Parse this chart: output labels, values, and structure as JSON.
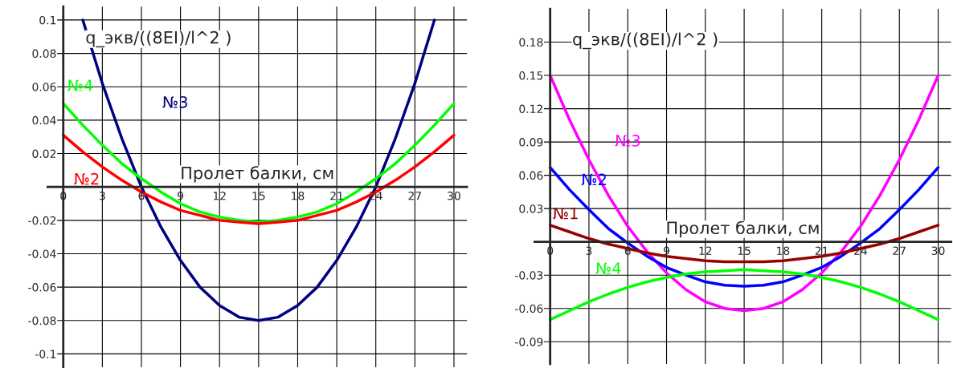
{
  "chart_data": [
    {
      "type": "line",
      "ylabel": "q_экв/((8EI)/l^2 )",
      "xlabel": "Пролет балки, см",
      "x": [
        0,
        1.5,
        3,
        4.5,
        6,
        7.5,
        9,
        10.5,
        12,
        13.5,
        15,
        16.5,
        18,
        19.5,
        21,
        22.5,
        24,
        25.5,
        27,
        28.5,
        30
      ],
      "xlim": [
        -1.2,
        31
      ],
      "ylim": [
        -0.108,
        0.108
      ],
      "xticks": [
        0,
        3,
        6,
        9,
        12,
        15,
        18,
        21,
        24,
        27,
        30
      ],
      "yticks": [
        -0.1,
        -0.08,
        -0.06,
        -0.04,
        -0.02,
        0.02,
        0.04,
        0.06,
        0.08,
        0.1
      ],
      "grid": true,
      "legend": false,
      "series": [
        {
          "name": "№3",
          "color": "#000080",
          "values": [
            null,
            0.1,
            0.062,
            0.029,
            0,
            -0.024,
            -0.044,
            -0.06,
            -0.071,
            -0.078,
            -0.08,
            -0.078,
            -0.071,
            -0.06,
            -0.044,
            -0.024,
            0,
            0.029,
            0.062,
            0.1,
            null
          ]
        },
        {
          "name": "№4",
          "color": "#00ff00",
          "values": [
            0.05,
            0.037,
            0.025,
            0.014,
            0.005,
            -0.003,
            -0.01,
            -0.015,
            -0.018,
            -0.02,
            -0.021,
            -0.02,
            -0.018,
            -0.015,
            -0.01,
            -0.003,
            0.005,
            0.014,
            0.025,
            0.037,
            0.05
          ]
        },
        {
          "name": "№2",
          "color": "#ff0000",
          "values": [
            0.031,
            0.021,
            0.012,
            0.004,
            -0.003,
            -0.009,
            -0.014,
            -0.017,
            -0.02,
            -0.021,
            -0.022,
            -0.021,
            -0.02,
            -0.017,
            -0.014,
            -0.009,
            -0.003,
            0.004,
            0.012,
            0.021,
            0.031
          ]
        }
      ]
    },
    {
      "type": "line",
      "ylabel": "q_экв/((8EI)/l^2 )",
      "xlabel": "Пролет балки, см",
      "x": [
        0,
        1.5,
        3,
        4.5,
        6,
        7.5,
        9,
        10.5,
        12,
        13.5,
        15,
        16.5,
        18,
        19.5,
        21,
        22.5,
        24,
        25.5,
        27,
        28.5,
        30
      ],
      "xlim": [
        -1.2,
        31
      ],
      "ylim": [
        -0.11,
        0.21
      ],
      "xticks": [
        0,
        3,
        6,
        9,
        12,
        15,
        18,
        21,
        24,
        27,
        30
      ],
      "yticks": [
        -0.09,
        -0.06,
        -0.03,
        0.03,
        0.06,
        0.09,
        0.12,
        0.15,
        0.18
      ],
      "grid": true,
      "legend": false,
      "series": [
        {
          "name": "№3",
          "color": "#ff00ff",
          "values": [
            0.15,
            0.11,
            0.074,
            0.042,
            0.014,
            -0.009,
            -0.028,
            -0.043,
            -0.054,
            -0.06,
            -0.062,
            -0.06,
            -0.054,
            -0.043,
            -0.028,
            -0.009,
            0.014,
            0.042,
            0.074,
            0.11,
            0.15
          ]
        },
        {
          "name": "№2",
          "color": "#0000ff",
          "values": [
            0.067,
            0.047,
            0.029,
            0.012,
            -0.001,
            -0.013,
            -0.023,
            -0.03,
            -0.036,
            -0.039,
            -0.04,
            -0.039,
            -0.036,
            -0.03,
            -0.023,
            -0.013,
            -0.001,
            0.012,
            0.029,
            0.047,
            0.067
          ]
        },
        {
          "name": "№1",
          "color": "#990000",
          "values": [
            0.015,
            0.009,
            0.003,
            -0.002,
            -0.006,
            -0.01,
            -0.013,
            -0.015,
            -0.017,
            -0.018,
            -0.018,
            -0.018,
            -0.017,
            -0.015,
            -0.013,
            -0.01,
            -0.006,
            -0.002,
            0.003,
            0.009,
            0.015
          ]
        },
        {
          "name": "№4",
          "color": "#00ff00",
          "values": [
            -0.07,
            -0.062,
            -0.054,
            -0.047,
            -0.041,
            -0.036,
            -0.032,
            -0.029,
            -0.027,
            -0.026,
            -0.025,
            -0.026,
            -0.027,
            -0.029,
            -0.032,
            -0.036,
            -0.041,
            -0.047,
            -0.054,
            -0.062,
            -0.07
          ]
        }
      ]
    }
  ]
}
